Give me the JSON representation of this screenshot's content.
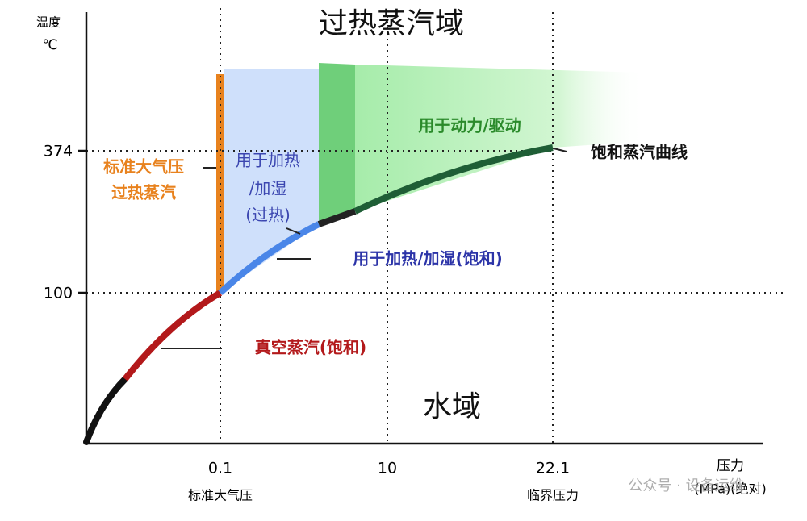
{
  "header": {
    "title": "过热蒸汽域"
  },
  "axes": {
    "y_label": [
      "温度",
      "℃"
    ],
    "y_ticks": [
      "374",
      "100"
    ],
    "x_ticks": [
      {
        "value": "0.1",
        "note": "标准大气压"
      },
      {
        "value": "10"
      },
      {
        "value": "22.1",
        "note": "临界压力"
      }
    ],
    "x_label": [
      "压力",
      "(MPa)(绝对)"
    ]
  },
  "regions": {
    "water": "水域",
    "atm_superheated": [
      "标准大气压",
      "过热蒸汽"
    ],
    "heat_superheated": [
      "用于加热",
      "/加湿",
      "(过热)"
    ],
    "power": "用于动力/驱动"
  },
  "curves": {
    "saturation": "饱和蒸汽曲线",
    "heat_saturated": "用于加热/加湿(饱和)",
    "vacuum": "真空蒸汽(饱和)"
  },
  "watermark": "公众号 · 设备运维"
}
